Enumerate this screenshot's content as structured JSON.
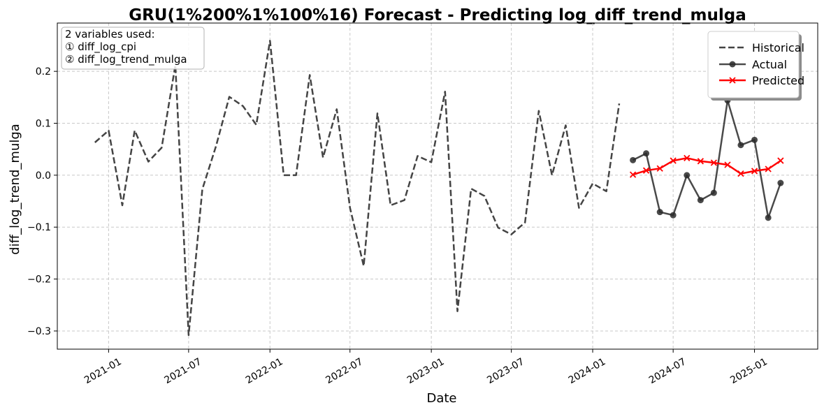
{
  "chart_data": {
    "type": "line",
    "title": "GRU(1%200%1%100%16) Forecast - Predicting log_diff_trend_mulga",
    "xlabel": "Date",
    "ylabel": "diff_log_trend_mulga",
    "xlim": [
      "2020-09-07",
      "2025-05-24"
    ],
    "ylim": [
      -0.335,
      0.293
    ],
    "grid": true,
    "x_ticks": [
      {
        "date": "2021-01-01",
        "label": "2021-01"
      },
      {
        "date": "2021-07-01",
        "label": "2021-07"
      },
      {
        "date": "2022-01-01",
        "label": "2022-01"
      },
      {
        "date": "2022-07-01",
        "label": "2022-07"
      },
      {
        "date": "2023-01-01",
        "label": "2023-01"
      },
      {
        "date": "2023-07-01",
        "label": "2023-07"
      },
      {
        "date": "2024-01-01",
        "label": "2024-01"
      },
      {
        "date": "2024-07-01",
        "label": "2024-07"
      },
      {
        "date": "2025-01-01",
        "label": "2025-01"
      }
    ],
    "y_ticks": [
      {
        "value": 0.2,
        "label": "0.2"
      },
      {
        "value": 0.1,
        "label": "0.1"
      },
      {
        "value": 0.0,
        "label": "0.0"
      },
      {
        "value": -0.1,
        "label": "−0.1"
      },
      {
        "value": -0.2,
        "label": "−0.2"
      },
      {
        "value": -0.3,
        "label": "−0.3"
      }
    ],
    "legend": {
      "position": "top-right",
      "entries": [
        "Historical",
        "Actual",
        "Predicted"
      ]
    },
    "annotation": {
      "position": "top-left",
      "lines": [
        "2 variables used:",
        "① diff_log_cpi",
        "② diff_log_trend_mulga"
      ]
    },
    "series": [
      {
        "name": "Historical",
        "style": "dashed",
        "color": "#444444",
        "points": [
          {
            "x": "2020-12-01",
            "y": 0.063
          },
          {
            "x": "2021-01-01",
            "y": 0.086
          },
          {
            "x": "2021-02-01",
            "y": -0.058
          },
          {
            "x": "2021-03-01",
            "y": 0.086
          },
          {
            "x": "2021-04-01",
            "y": 0.026
          },
          {
            "x": "2021-05-01",
            "y": 0.053
          },
          {
            "x": "2021-06-01",
            "y": 0.212
          },
          {
            "x": "2021-07-01",
            "y": -0.308
          },
          {
            "x": "2021-08-01",
            "y": -0.027
          },
          {
            "x": "2021-09-01",
            "y": 0.056
          },
          {
            "x": "2021-10-01",
            "y": 0.151
          },
          {
            "x": "2021-11-01",
            "y": 0.133
          },
          {
            "x": "2021-12-01",
            "y": 0.097
          },
          {
            "x": "2022-01-01",
            "y": 0.259
          },
          {
            "x": "2022-02-01",
            "y": 0.0
          },
          {
            "x": "2022-03-01",
            "y": 0.0
          },
          {
            "x": "2022-04-01",
            "y": 0.193
          },
          {
            "x": "2022-05-01",
            "y": 0.034
          },
          {
            "x": "2022-06-01",
            "y": 0.127
          },
          {
            "x": "2022-07-01",
            "y": -0.063
          },
          {
            "x": "2022-08-01",
            "y": -0.175
          },
          {
            "x": "2022-09-01",
            "y": 0.119
          },
          {
            "x": "2022-10-01",
            "y": -0.058
          },
          {
            "x": "2022-11-01",
            "y": -0.048
          },
          {
            "x": "2022-12-01",
            "y": 0.037
          },
          {
            "x": "2023-01-01",
            "y": 0.025
          },
          {
            "x": "2023-02-01",
            "y": 0.161
          },
          {
            "x": "2023-03-01",
            "y": -0.262
          },
          {
            "x": "2023-04-01",
            "y": -0.026
          },
          {
            "x": "2023-05-01",
            "y": -0.04
          },
          {
            "x": "2023-06-01",
            "y": -0.101
          },
          {
            "x": "2023-07-01",
            "y": -0.114
          },
          {
            "x": "2023-08-01",
            "y": -0.091
          },
          {
            "x": "2023-09-01",
            "y": 0.124
          },
          {
            "x": "2023-10-01",
            "y": 0.0
          },
          {
            "x": "2023-11-01",
            "y": 0.096
          },
          {
            "x": "2023-12-01",
            "y": -0.063
          },
          {
            "x": "2024-01-01",
            "y": -0.016
          },
          {
            "x": "2024-02-01",
            "y": -0.031
          },
          {
            "x": "2024-03-01",
            "y": 0.138
          }
        ]
      },
      {
        "name": "Actual",
        "style": "solid-circle",
        "color": "#2a2a2a",
        "points": [
          {
            "x": "2024-04-01",
            "y": 0.029
          },
          {
            "x": "2024-05-01",
            "y": 0.042
          },
          {
            "x": "2024-06-01",
            "y": -0.071
          },
          {
            "x": "2024-07-01",
            "y": -0.077
          },
          {
            "x": "2024-08-01",
            "y": 0.0
          },
          {
            "x": "2024-09-01",
            "y": -0.048
          },
          {
            "x": "2024-10-01",
            "y": -0.034
          },
          {
            "x": "2024-11-01",
            "y": 0.144
          },
          {
            "x": "2024-12-01",
            "y": 0.058
          },
          {
            "x": "2025-01-01",
            "y": 0.068
          },
          {
            "x": "2025-02-01",
            "y": -0.082
          },
          {
            "x": "2025-03-01",
            "y": -0.015
          }
        ]
      },
      {
        "name": "Predicted",
        "style": "solid-x",
        "color": "#ff0000",
        "points": [
          {
            "x": "2024-04-01",
            "y": 0.001
          },
          {
            "x": "2024-05-01",
            "y": 0.009
          },
          {
            "x": "2024-06-01",
            "y": 0.013
          },
          {
            "x": "2024-07-01",
            "y": 0.028
          },
          {
            "x": "2024-08-01",
            "y": 0.033
          },
          {
            "x": "2024-09-01",
            "y": 0.027
          },
          {
            "x": "2024-10-01",
            "y": 0.024
          },
          {
            "x": "2024-11-01",
            "y": 0.02
          },
          {
            "x": "2024-12-01",
            "y": 0.003
          },
          {
            "x": "2025-01-01",
            "y": 0.008
          },
          {
            "x": "2025-02-01",
            "y": 0.012
          },
          {
            "x": "2025-03-01",
            "y": 0.028
          }
        ]
      }
    ]
  }
}
